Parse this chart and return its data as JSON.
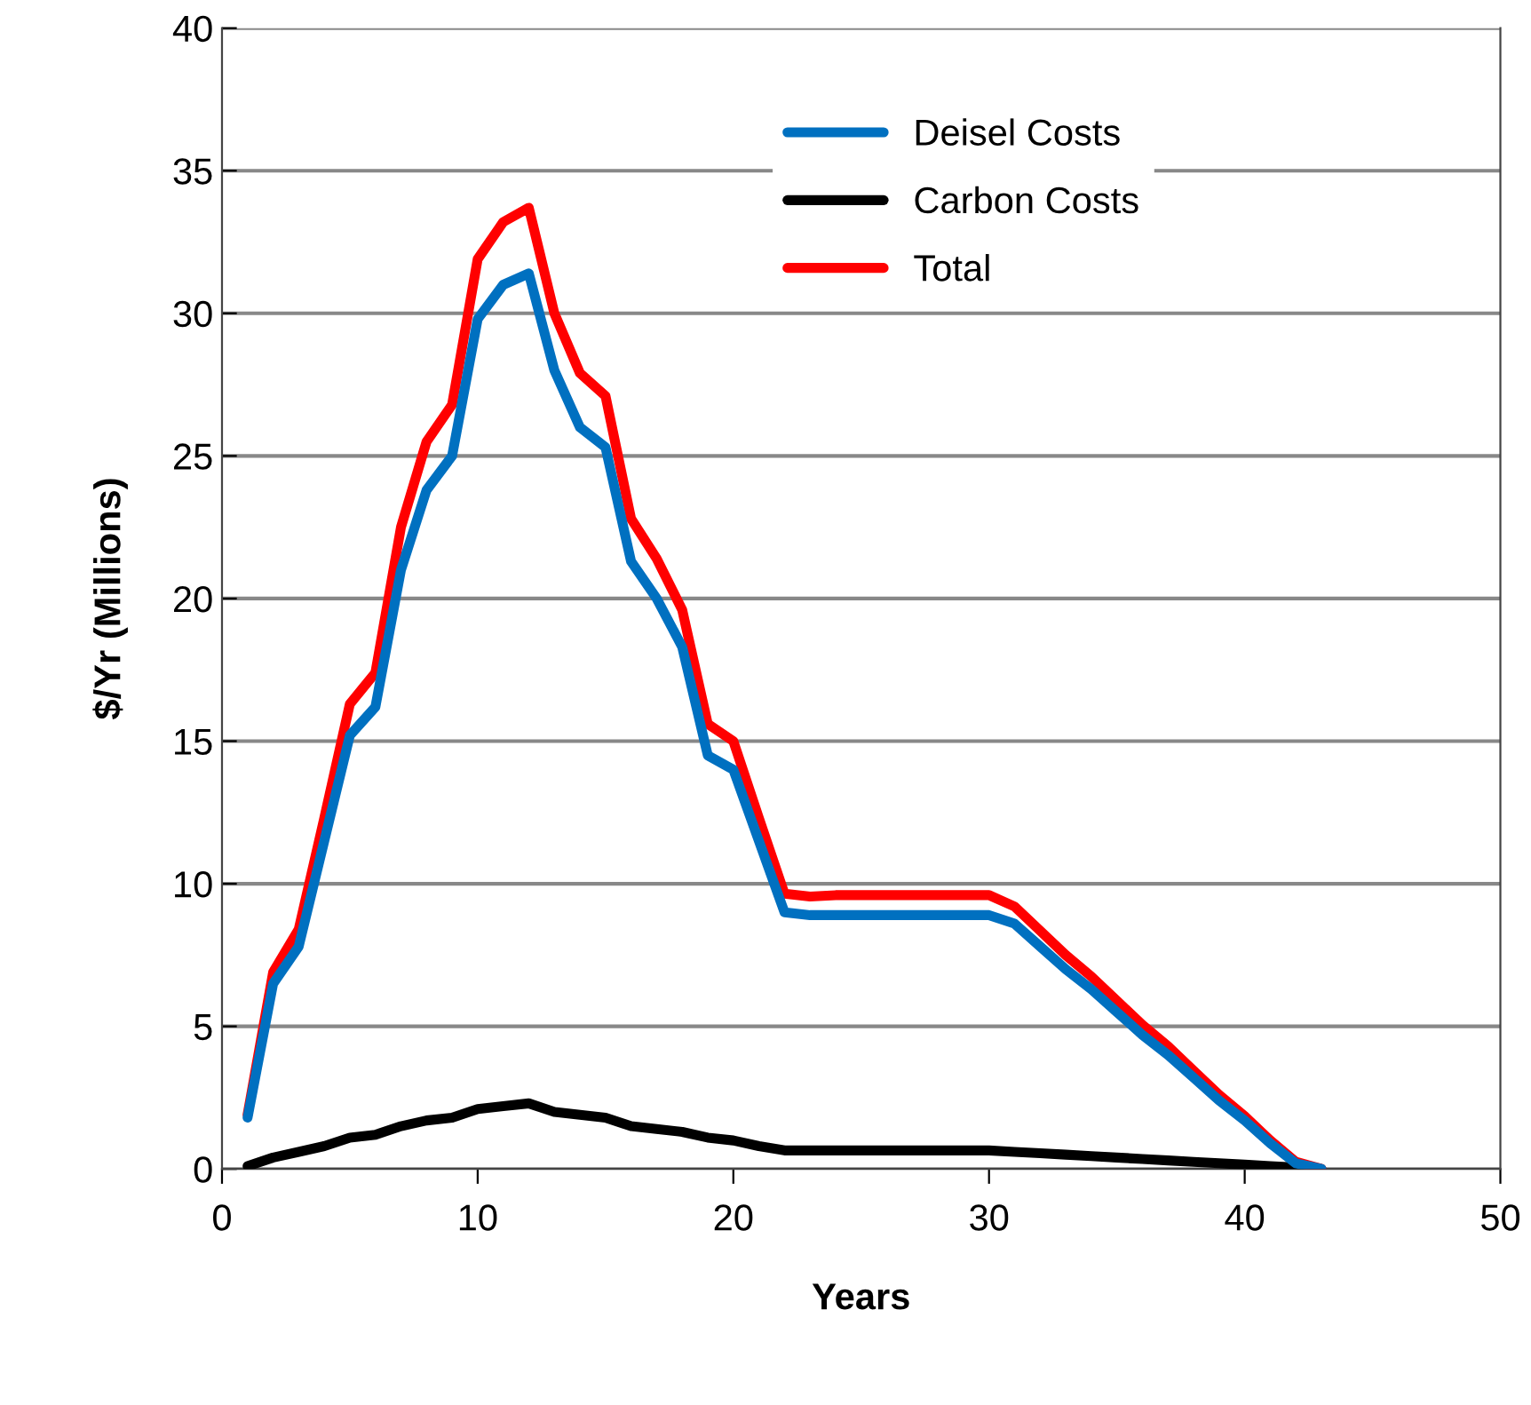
{
  "chart_data": {
    "type": "line",
    "xlabel": "Years",
    "ylabel": "$/Yr (Millions)",
    "x": [
      1,
      2,
      3,
      4,
      5,
      6,
      7,
      8,
      9,
      10,
      11,
      12,
      13,
      14,
      15,
      16,
      17,
      18,
      19,
      20,
      21,
      22,
      23,
      24,
      25,
      26,
      27,
      28,
      29,
      30,
      31,
      32,
      33,
      34,
      35,
      36,
      37,
      38,
      39,
      40,
      41,
      42,
      43
    ],
    "series": [
      {
        "name": "Deisel Costs",
        "color": "#0070c0",
        "values": [
          1.8,
          6.5,
          7.8,
          11.5,
          15.2,
          16.2,
          21,
          23.8,
          25,
          29.8,
          31,
          31.4,
          28,
          26,
          25.3,
          21.3,
          20,
          18.3,
          14.5,
          14,
          11.5,
          9,
          8.9,
          8.9,
          8.9,
          8.9,
          8.9,
          8.9,
          8.9,
          8.9,
          8.6,
          7.8,
          7.0,
          6.3,
          5.5,
          4.7,
          4.0,
          3.2,
          2.4,
          1.7,
          0.9,
          0.2,
          0
        ]
      },
      {
        "name": "Carbon Costs",
        "color": "#000000",
        "values": [
          0.1,
          0.4,
          0.6,
          0.8,
          1.1,
          1.2,
          1.5,
          1.7,
          1.8,
          2.1,
          2.2,
          2.3,
          2.0,
          1.9,
          1.8,
          1.5,
          1.4,
          1.3,
          1.1,
          1.0,
          0.8,
          0.65,
          0.65,
          0.65,
          0.65,
          0.65,
          0.65,
          0.65,
          0.65,
          0.65,
          0.6,
          0.55,
          0.5,
          0.45,
          0.4,
          0.35,
          0.3,
          0.25,
          0.2,
          0.15,
          0.1,
          0.05,
          0
        ]
      },
      {
        "name": "Total",
        "color": "#ff0000",
        "values": [
          1.9,
          6.9,
          8.4,
          12.3,
          16.3,
          17.4,
          22.5,
          25.5,
          26.8,
          31.9,
          33.2,
          33.7,
          30,
          27.9,
          27.1,
          22.8,
          21.4,
          19.6,
          15.6,
          15,
          12.3,
          9.65,
          9.55,
          9.6,
          9.6,
          9.6,
          9.6,
          9.6,
          9.6,
          9.6,
          9.2,
          8.35,
          7.5,
          6.75,
          5.9,
          5.05,
          4.3,
          3.45,
          2.6,
          1.85,
          1.0,
          0.25,
          0
        ]
      }
    ],
    "xlim": [
      0,
      50
    ],
    "xticks": [
      0,
      10,
      20,
      30,
      40,
      50
    ],
    "ylim": [
      0,
      40
    ],
    "yticks": [
      0,
      5,
      10,
      15,
      20,
      25,
      30,
      35,
      40
    ],
    "grid": "y",
    "legend": "top",
    "marker": "none",
    "line_style": "solid"
  }
}
